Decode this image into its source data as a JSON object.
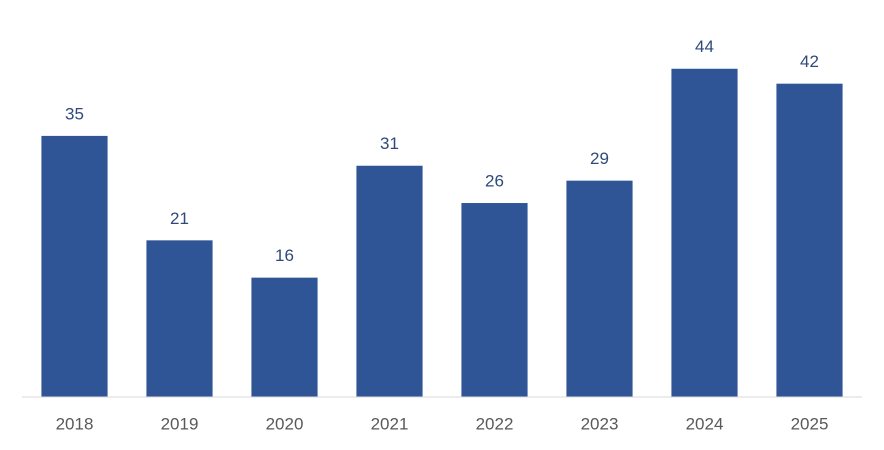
{
  "chart_data": {
    "type": "bar",
    "categories": [
      "2018",
      "2019",
      "2020",
      "2021",
      "2022",
      "2023",
      "2024",
      "2025"
    ],
    "values": [
      35,
      21,
      16,
      31,
      26,
      29,
      44,
      42
    ],
    "color": "#2f5597",
    "ylim": [
      0,
      50
    ]
  }
}
